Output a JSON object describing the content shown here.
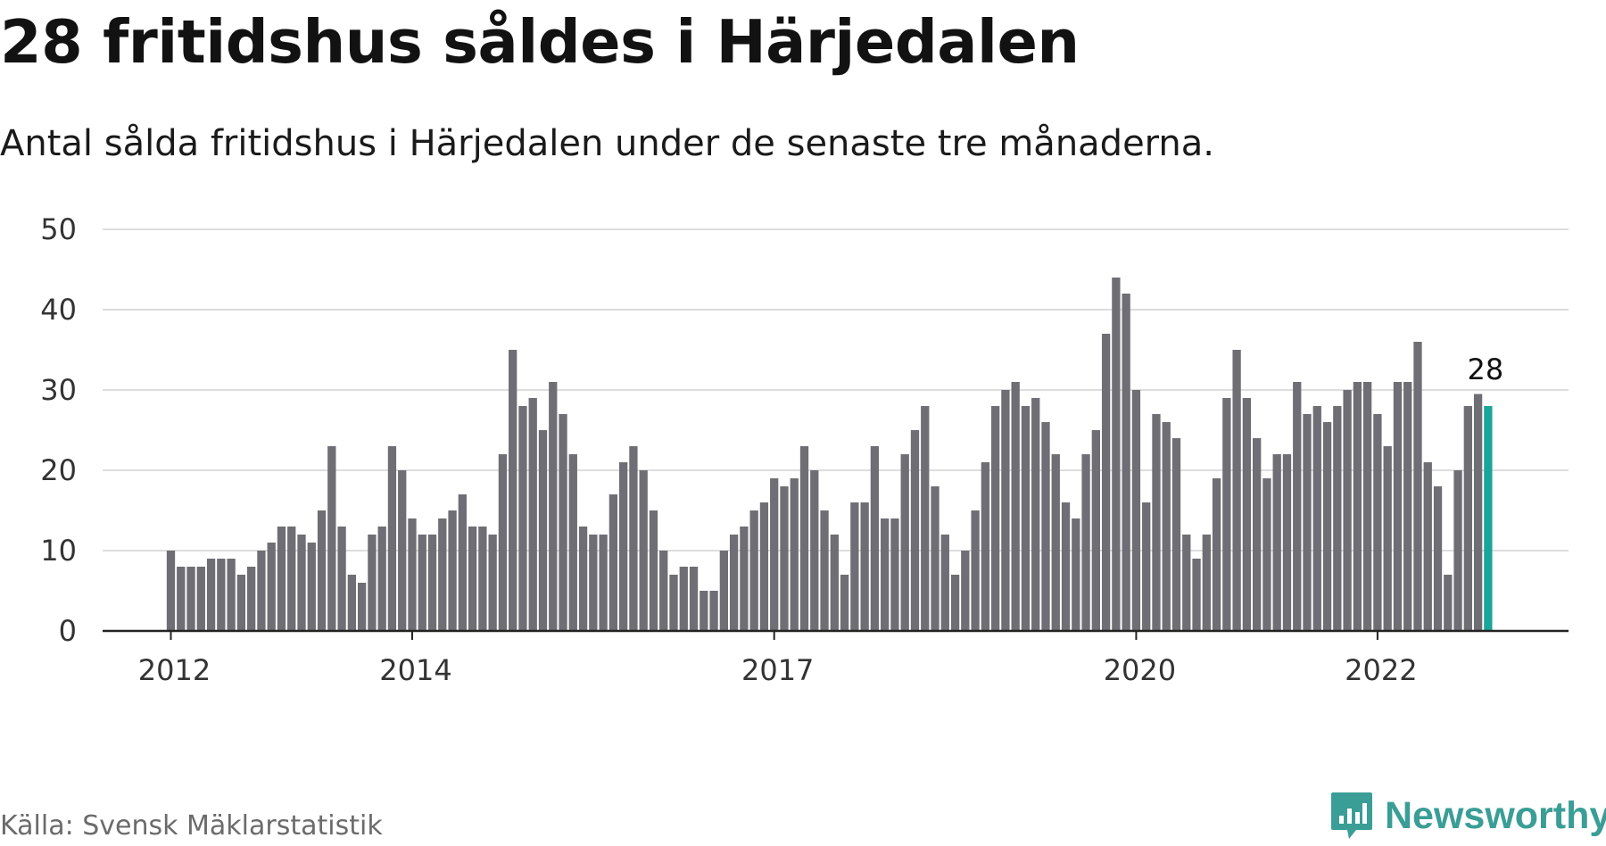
{
  "title": "28 fritidshus såldes i Härjedalen",
  "subtitle": "Antal sålda fritidshus i Härjedalen under de senaste tre månaderna.",
  "source": "Källa: Svensk Mäklarstatistik",
  "brand": {
    "name": "Newsworthy",
    "icon": "newsworthy-logo-icon",
    "color": "#3a9e96"
  },
  "colors": {
    "bar": "#6f6e74",
    "highlight": "#1aa59b",
    "grid": "#dddddd",
    "axis": "#222222"
  },
  "chart_data": {
    "type": "bar",
    "title": "28 fritidshus såldes i Härjedalen",
    "subtitle": "Antal sålda fritidshus i Härjedalen under de senaste tre månaderna.",
    "xlabel": "",
    "ylabel": "",
    "ylim": [
      0,
      50
    ],
    "yticks": [
      0,
      10,
      20,
      30,
      40,
      50
    ],
    "grid": true,
    "start": "2012-01",
    "xtick_labels": [
      {
        "label": "2012",
        "index": 0
      },
      {
        "label": "2014",
        "index": 24
      },
      {
        "label": "2017",
        "index": 60
      },
      {
        "label": "2020",
        "index": 96
      },
      {
        "label": "2022",
        "index": 120
      }
    ],
    "values": [
      10,
      8,
      8,
      8,
      9,
      9,
      9,
      7,
      8,
      10,
      11,
      13,
      13,
      12,
      11,
      15,
      23,
      13,
      7,
      6,
      12,
      13,
      23,
      20,
      14,
      12,
      12,
      14,
      15,
      17,
      13,
      13,
      12,
      22,
      35,
      28,
      29,
      25,
      31,
      27,
      22,
      13,
      12,
      12,
      17,
      21,
      23,
      20,
      15,
      10,
      7,
      8,
      8,
      5,
      5,
      10,
      12,
      13,
      15,
      16,
      19,
      18,
      19,
      23,
      20,
      15,
      12,
      7,
      16,
      16,
      23,
      14,
      14,
      22,
      25,
      28,
      18,
      12,
      7,
      10,
      15,
      21,
      28,
      30,
      31,
      28,
      29,
      26,
      22,
      16,
      14,
      22,
      25,
      37,
      44,
      42,
      30,
      16,
      27,
      26,
      24,
      12,
      9,
      12,
      19,
      29,
      35,
      29,
      24,
      19,
      22,
      22,
      31,
      27,
      28,
      26,
      28,
      30,
      31,
      31,
      27,
      23,
      31,
      31,
      36,
      21,
      18,
      7,
      20,
      28,
      29.5,
      28
    ],
    "highlight_index": 131,
    "highlight_label": "28"
  }
}
